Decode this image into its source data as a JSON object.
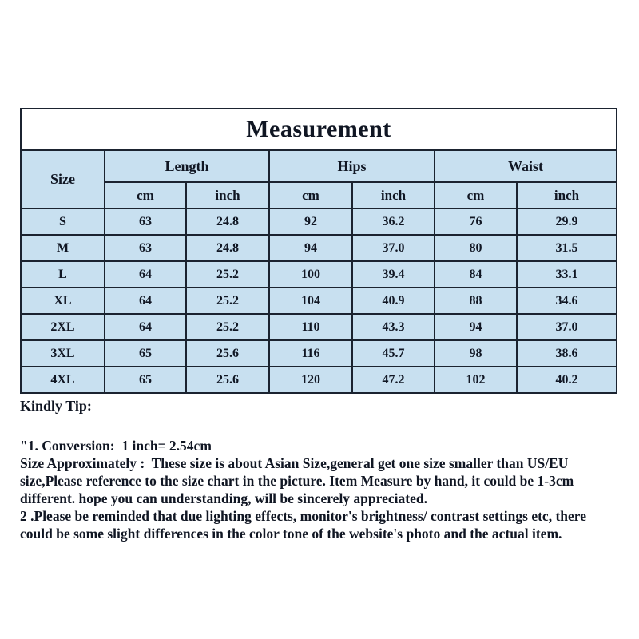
{
  "title": "Measurement",
  "table": {
    "size_header": "Size",
    "group_headers": [
      "Length",
      "Hips",
      "Waist"
    ],
    "sub_headers": [
      "cm",
      "inch",
      "cm",
      "inch",
      "cm",
      "inch"
    ],
    "rows": [
      {
        "size": "S",
        "cells": [
          "63",
          "24.8",
          "92",
          "36.2",
          "76",
          "29.9"
        ]
      },
      {
        "size": "M",
        "cells": [
          "63",
          "24.8",
          "94",
          "37.0",
          "80",
          "31.5"
        ]
      },
      {
        "size": "L",
        "cells": [
          "64",
          "25.2",
          "100",
          "39.4",
          "84",
          "33.1"
        ]
      },
      {
        "size": "XL",
        "cells": [
          "64",
          "25.2",
          "104",
          "40.9",
          "88",
          "34.6"
        ]
      },
      {
        "size": "2XL",
        "cells": [
          "64",
          "25.2",
          "110",
          "43.3",
          "94",
          "37.0"
        ]
      },
      {
        "size": "3XL",
        "cells": [
          "65",
          "25.6",
          "116",
          "45.7",
          "98",
          "38.6"
        ]
      },
      {
        "size": "4XL",
        "cells": [
          "65",
          "25.6",
          "120",
          "47.2",
          "102",
          "40.2"
        ]
      }
    ]
  },
  "notes": {
    "heading": "Kindly Tip:",
    "lines": [
      "\"1. Conversion:  1 inch= 2.54cm",
      "Size Approximately :  These size is about Asian Size,general get one size smaller than US/EU",
      "size,Please reference to the size chart in the picture. Item Measure by hand, it could be 1-3cm",
      "different. hope you can understanding, will be sincerely appreciated.",
      "2 .Please be reminded that due lighting effects, monitor's brightness/ contrast settings etc, there",
      "could be some slight differences in the color tone of the website's photo and the actual item."
    ]
  },
  "colors": {
    "cell_blue": "#c8e0f0",
    "border": "#1b2330",
    "text": "#101623",
    "background": "#ffffff"
  }
}
